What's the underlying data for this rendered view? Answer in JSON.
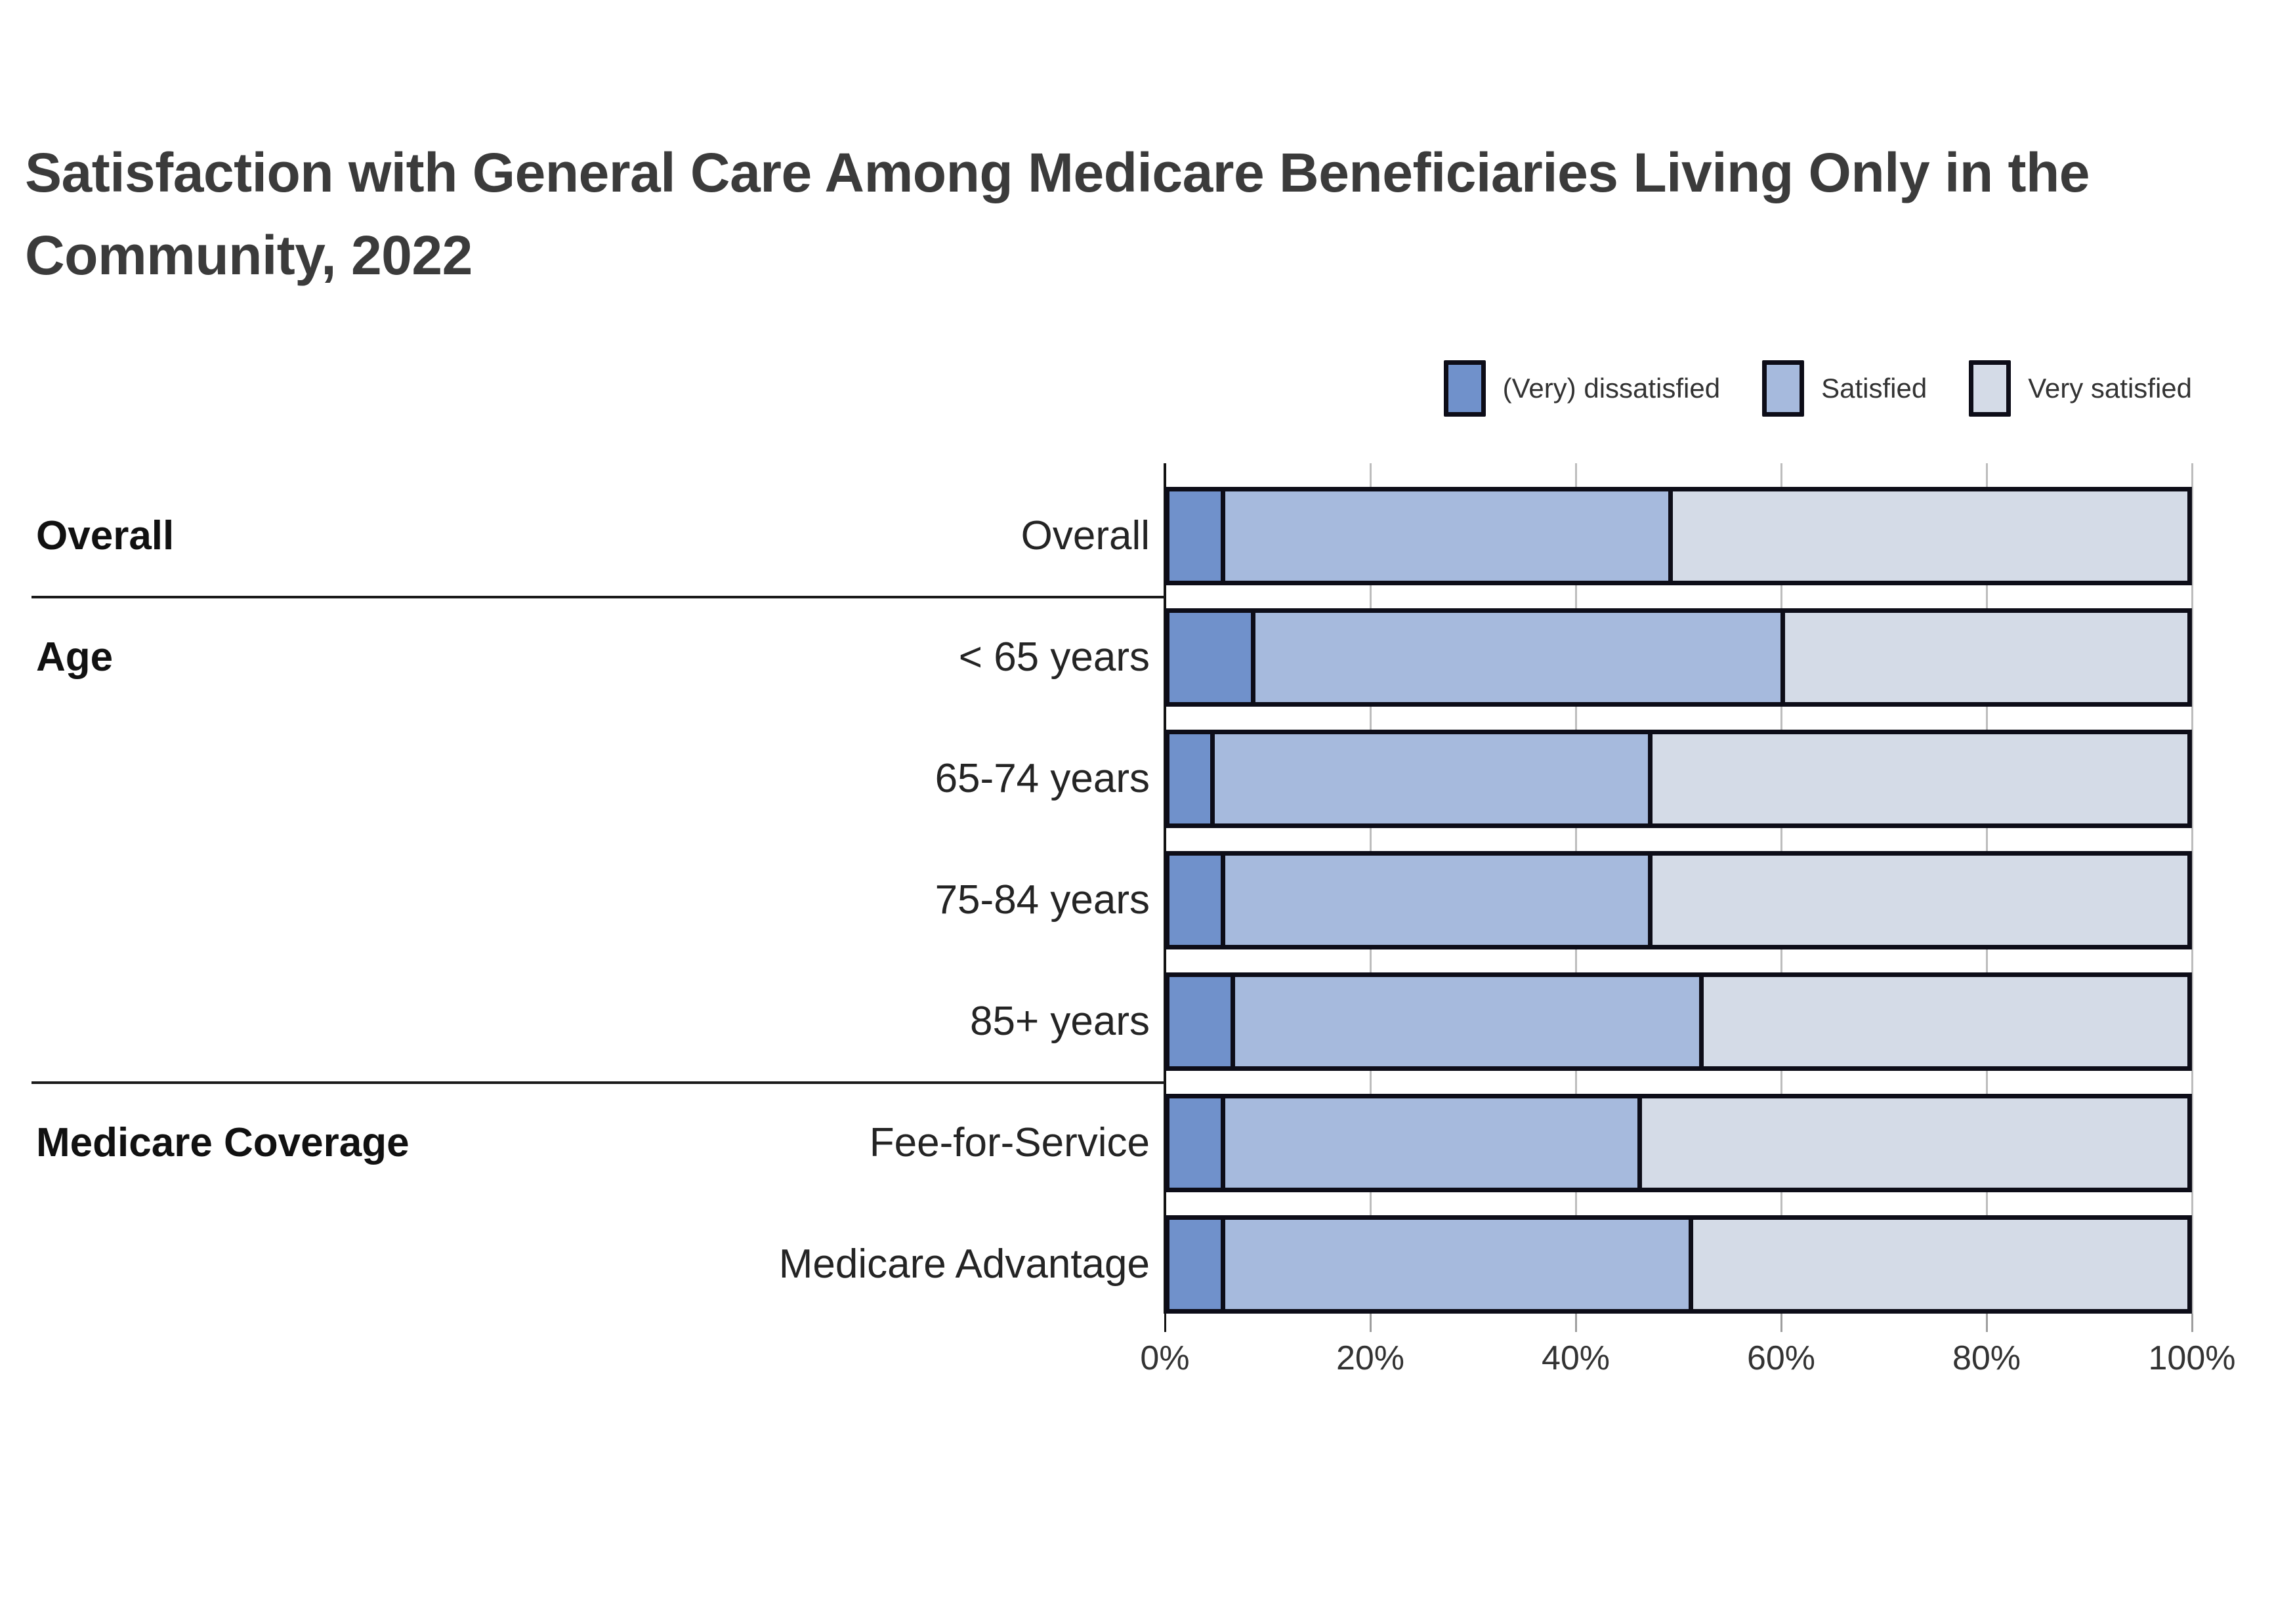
{
  "title": "Satisfaction with General Care Among Medicare Beneficiaries Living Only in the Community, 2022",
  "legend": [
    {
      "label": "(Very) dissatisfied",
      "color": "#7091cb"
    },
    {
      "label": "Satisfied",
      "color": "#a6badd"
    },
    {
      "label": "Very satisfied",
      "color": "#d4dbe7"
    }
  ],
  "colors": {
    "bar_border": "#0d0d18",
    "gridline": "#bdbdbd",
    "axis": "#141414",
    "title_text": "#3b3b3b",
    "label_text": "#242424"
  },
  "chart_data": {
    "type": "bar",
    "orientation": "horizontal",
    "stacked": true,
    "unit": "percent",
    "title": "Satisfaction with General Care Among Medicare Beneficiaries Living Only in the Community, 2022",
    "categories": [
      "Overall",
      "< 65 years",
      "65-74 years",
      "75-84 years",
      "85+ years",
      "Fee-for-Service",
      "Medicare Advantage"
    ],
    "groups": [
      {
        "label": "Overall",
        "rows": [
          0
        ]
      },
      {
        "label": "Age",
        "rows": [
          1,
          2,
          3,
          4
        ]
      },
      {
        "label": "Medicare Coverage",
        "rows": [
          5,
          6
        ]
      }
    ],
    "series": [
      {
        "name": "(Very) dissatisfied",
        "color": "#7091cb",
        "values": [
          5,
          8,
          4,
          5,
          6,
          5,
          5
        ]
      },
      {
        "name": "Satisfied",
        "color": "#a6badd",
        "values": [
          44,
          52,
          43,
          42,
          46,
          41,
          46
        ]
      },
      {
        "name": "Very satisfied",
        "color": "#d4dbe7",
        "values": [
          51,
          40,
          53,
          53,
          48,
          54,
          49
        ]
      }
    ],
    "x_axis": {
      "ticks": [
        "0%",
        "20%",
        "40%",
        "60%",
        "80%",
        "100%"
      ],
      "range": [
        0,
        100
      ],
      "grid": true
    },
    "legend_position": "top-right",
    "ylabel": "",
    "xlabel": ""
  }
}
